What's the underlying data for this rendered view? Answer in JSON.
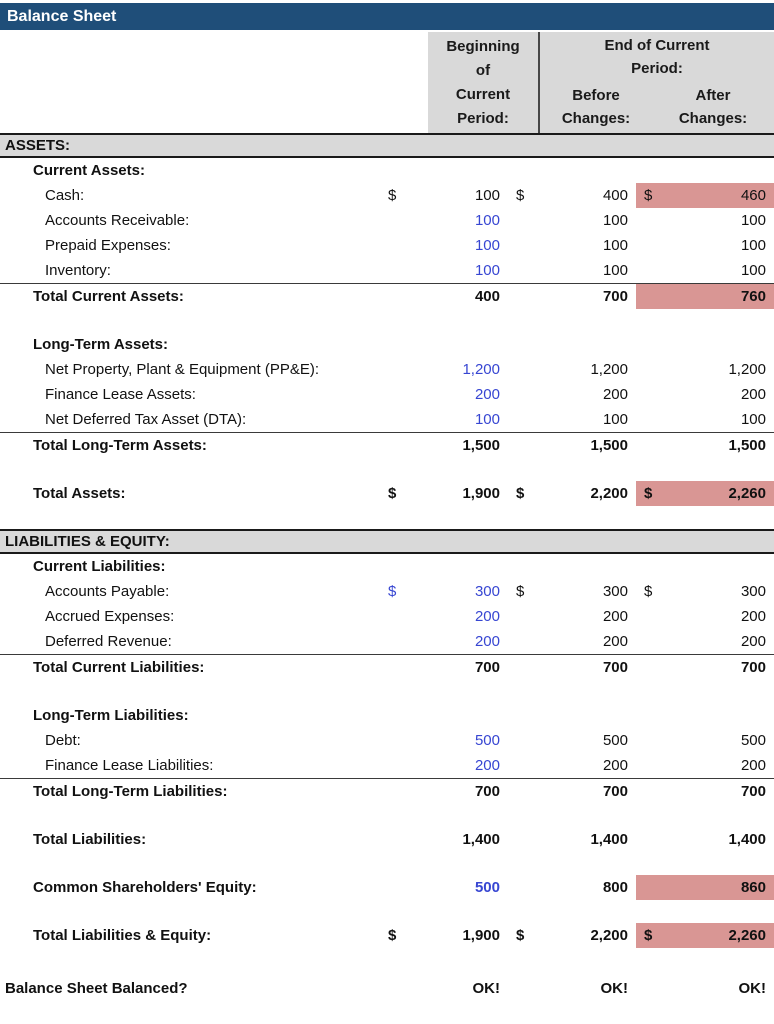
{
  "title": "Balance Sheet",
  "colors": {
    "navy": "#1F4E79",
    "band_gray": "#D9D9D9",
    "highlight_pink": "#D99694",
    "input_blue": "#3746D2"
  },
  "header": {
    "col1_lines": [
      "Beginning",
      "of",
      "Current",
      "Period:"
    ],
    "group_label_line1": "End of Current",
    "group_label_line2": "Period:",
    "before_line1": "Before",
    "before_line2": "Changes:",
    "after_line1": "After",
    "after_line2": "Changes:"
  },
  "rows": [
    {
      "type": "section",
      "label": "ASSETS:"
    },
    {
      "type": "subheader",
      "label": "Current Assets:",
      "indent": 1
    },
    {
      "type": "item",
      "label": "Cash:",
      "indent": 2,
      "cells": [
        {
          "d": "$",
          "v": "100"
        },
        {
          "d": "$",
          "v": "400"
        },
        {
          "d": "$",
          "v": "460",
          "pink": true
        }
      ]
    },
    {
      "type": "item",
      "label": "Accounts Receivable:",
      "indent": 2,
      "cells": [
        {
          "v": "100",
          "blue": true
        },
        {
          "v": "100"
        },
        {
          "v": "100"
        }
      ]
    },
    {
      "type": "item",
      "label": "Prepaid Expenses:",
      "indent": 2,
      "cells": [
        {
          "v": "100",
          "blue": true
        },
        {
          "v": "100"
        },
        {
          "v": "100"
        }
      ]
    },
    {
      "type": "item",
      "label": "Inventory:",
      "indent": 2,
      "cells": [
        {
          "v": "100",
          "blue": true
        },
        {
          "v": "100"
        },
        {
          "v": "100"
        }
      ]
    },
    {
      "type": "total",
      "label": "Total Current Assets:",
      "indent": 1,
      "border_top": true,
      "cells": [
        {
          "v": "400"
        },
        {
          "v": "700"
        },
        {
          "v": "760",
          "pink": true
        }
      ]
    },
    {
      "type": "blank"
    },
    {
      "type": "subheader",
      "label": "Long-Term Assets:",
      "indent": 1
    },
    {
      "type": "item",
      "label": "Net Property, Plant & Equipment (PP&E):",
      "indent": 2,
      "cells": [
        {
          "v": "1,200",
          "blue": true
        },
        {
          "v": "1,200"
        },
        {
          "v": "1,200"
        }
      ]
    },
    {
      "type": "item",
      "label": "Finance Lease Assets:",
      "indent": 2,
      "cells": [
        {
          "v": "200",
          "blue": true
        },
        {
          "v": "200"
        },
        {
          "v": "200"
        }
      ]
    },
    {
      "type": "item",
      "label": "Net Deferred Tax Asset (DTA):",
      "indent": 2,
      "cells": [
        {
          "v": "100",
          "blue": true
        },
        {
          "v": "100"
        },
        {
          "v": "100"
        }
      ]
    },
    {
      "type": "total",
      "label": "Total Long-Term Assets:",
      "indent": 1,
      "border_top": true,
      "cells": [
        {
          "v": "1,500"
        },
        {
          "v": "1,500"
        },
        {
          "v": "1,500"
        }
      ]
    },
    {
      "type": "blank"
    },
    {
      "type": "total",
      "label": "Total Assets:",
      "indent": 1,
      "cells": [
        {
          "d": "$",
          "v": "1,900"
        },
        {
          "d": "$",
          "v": "2,200"
        },
        {
          "d": "$",
          "v": "2,260",
          "pink": true
        }
      ]
    },
    {
      "type": "blank"
    },
    {
      "type": "section",
      "label": "LIABILITIES & EQUITY:"
    },
    {
      "type": "subheader",
      "label": "Current Liabilities:",
      "indent": 1
    },
    {
      "type": "item",
      "label": "Accounts Payable:",
      "indent": 2,
      "cells": [
        {
          "d": "$",
          "v": "300",
          "blue": true
        },
        {
          "d": "$",
          "v": "300"
        },
        {
          "d": "$",
          "v": "300"
        }
      ]
    },
    {
      "type": "item",
      "label": "Accrued Expenses:",
      "indent": 2,
      "cells": [
        {
          "v": "200",
          "blue": true
        },
        {
          "v": "200"
        },
        {
          "v": "200"
        }
      ]
    },
    {
      "type": "item",
      "label": "Deferred Revenue:",
      "indent": 2,
      "cells": [
        {
          "v": "200",
          "blue": true
        },
        {
          "v": "200"
        },
        {
          "v": "200"
        }
      ]
    },
    {
      "type": "total",
      "label": "Total Current Liabilities:",
      "indent": 1,
      "border_top": true,
      "cells": [
        {
          "v": "700"
        },
        {
          "v": "700"
        },
        {
          "v": "700"
        }
      ]
    },
    {
      "type": "blank"
    },
    {
      "type": "subheader",
      "label": "Long-Term Liabilities:",
      "indent": 1
    },
    {
      "type": "item",
      "label": "Debt:",
      "indent": 2,
      "cells": [
        {
          "v": "500",
          "blue": true
        },
        {
          "v": "500"
        },
        {
          "v": "500"
        }
      ]
    },
    {
      "type": "item",
      "label": "Finance Lease Liabilities:",
      "indent": 2,
      "cells": [
        {
          "v": "200",
          "blue": true
        },
        {
          "v": "200"
        },
        {
          "v": "200"
        }
      ]
    },
    {
      "type": "total",
      "label": "Total Long-Term Liabilities:",
      "indent": 1,
      "border_top": true,
      "cells": [
        {
          "v": "700"
        },
        {
          "v": "700"
        },
        {
          "v": "700"
        }
      ]
    },
    {
      "type": "blank"
    },
    {
      "type": "total",
      "label": "Total Liabilities:",
      "indent": 1,
      "cells": [
        {
          "v": "1,400"
        },
        {
          "v": "1,400"
        },
        {
          "v": "1,400"
        }
      ]
    },
    {
      "type": "blank"
    },
    {
      "type": "total",
      "label": "Common Shareholders' Equity:",
      "indent": 1,
      "cells": [
        {
          "v": "500",
          "blue": true
        },
        {
          "v": "800"
        },
        {
          "v": "860",
          "pink": true
        }
      ]
    },
    {
      "type": "blank"
    },
    {
      "type": "total",
      "label": "Total Liabilities & Equity:",
      "indent": 1,
      "cells": [
        {
          "d": "$",
          "v": "1,900"
        },
        {
          "d": "$",
          "v": "2,200"
        },
        {
          "d": "$",
          "v": "2,260",
          "pink": true
        }
      ]
    },
    {
      "type": "blank",
      "h": 28
    },
    {
      "type": "check",
      "label": "Balance Sheet Balanced?",
      "cells": [
        {
          "v": "OK!"
        },
        {
          "v": "OK!"
        },
        {
          "v": "OK!"
        }
      ]
    }
  ]
}
